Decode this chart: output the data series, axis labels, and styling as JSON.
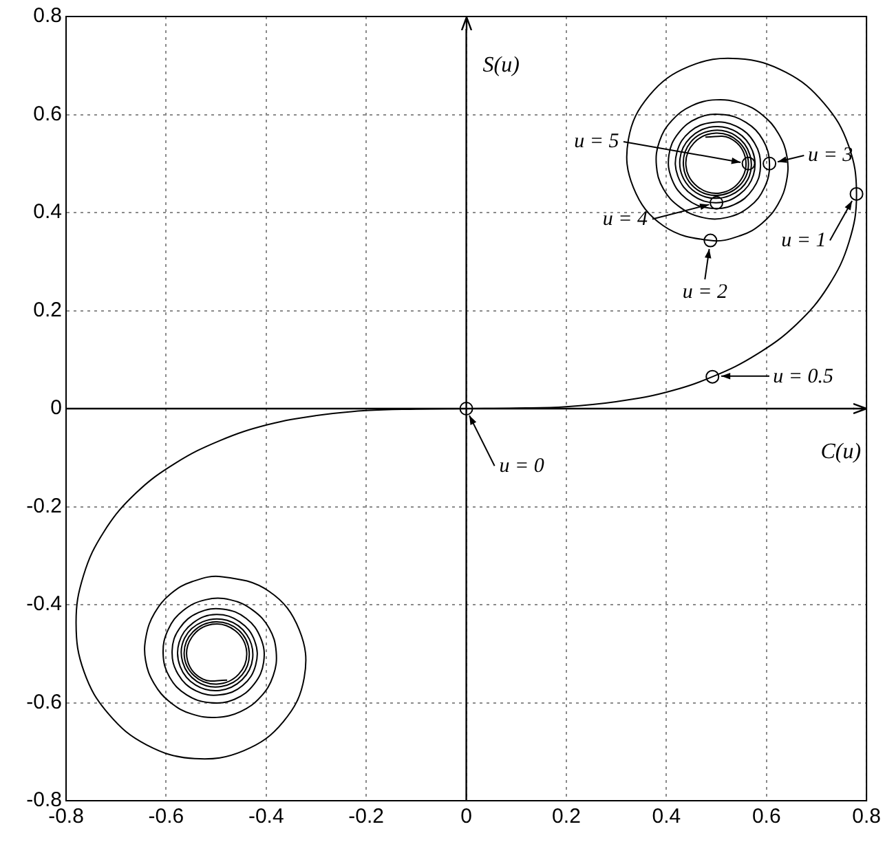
{
  "chart_data": {
    "type": "line",
    "xlabel": "C(u)",
    "ylabel": "S(u)",
    "xlim": [
      -0.8,
      0.8
    ],
    "ylim": [
      -0.8,
      0.8
    ],
    "xticks": [
      -0.8,
      -0.6,
      -0.4,
      -0.2,
      0,
      0.2,
      0.4,
      0.6,
      0.8
    ],
    "yticks": [
      -0.8,
      -0.6,
      -0.4,
      -0.2,
      0,
      0.2,
      0.4,
      0.6,
      0.8
    ],
    "grid": true,
    "legend": false,
    "series": [
      {
        "type": "line",
        "color": "#000000",
        "marker": "none",
        "x": [
          0,
          0.1,
          0.2,
          0.299,
          0.398,
          0.492,
          0.581,
          0.66,
          0.723,
          0.765,
          0.78,
          0.764,
          0.715,
          0.639,
          0.543,
          0.445,
          0.366,
          0.324,
          0.334,
          0.394,
          0.488,
          0.548,
          0.591,
          0.623,
          0.64,
          0.641,
          0.624,
          0.592,
          0.549,
          0.499,
          0.451,
          0.411,
          0.386,
          0.38,
          0.394,
          0.427,
          0.472,
          0.521,
          0.566,
          0.596,
          0.606,
          0.593,
          0.559,
          0.512,
          0.463,
          0.424,
          0.405,
          0.411,
          0.44,
          0.486,
          0.535,
          0.573,
          0.588,
          0.576,
          0.54,
          0.492,
          0.447,
          0.421,
          0.423,
          0.453,
          0.5,
          0.546,
          0.574,
          0.572,
          0.541,
          0.493,
          0.448,
          0.427,
          0.439,
          0.478,
          0.527,
          0.563,
          0.567,
          0.538,
          0.49,
          0.448,
          0.434,
          0.455,
          0.501,
          0.546,
          0.564,
          0.544,
          0.499,
          0.455,
          0.439,
          0.462,
          0.508,
          0.549,
          0.557,
          0.526,
          0.478
        ],
        "values": [
          0,
          0.001,
          0.004,
          0.014,
          0.033,
          0.065,
          0.111,
          0.172,
          0.249,
          0.34,
          0.438,
          0.537,
          0.623,
          0.686,
          0.714,
          0.698,
          0.639,
          0.549,
          0.451,
          0.373,
          0.343,
          0.353,
          0.378,
          0.417,
          0.464,
          0.514,
          0.561,
          0.599,
          0.623,
          0.63,
          0.618,
          0.588,
          0.545,
          0.496,
          0.448,
          0.411,
          0.39,
          0.39,
          0.412,
          0.451,
          0.5,
          0.548,
          0.584,
          0.6,
          0.593,
          0.562,
          0.517,
          0.468,
          0.428,
          0.409,
          0.416,
          0.448,
          0.494,
          0.542,
          0.576,
          0.584,
          0.565,
          0.523,
          0.474,
          0.435,
          0.42,
          0.437,
          0.477,
          0.526,
          0.564,
          0.575,
          0.553,
          0.509,
          0.461,
          0.432,
          0.435,
          0.468,
          0.517,
          0.557,
          0.567,
          0.543,
          0.496,
          0.452,
          0.435,
          0.455,
          0.5,
          0.545,
          0.562,
          0.542,
          0.496,
          0.453,
          0.44,
          0.467,
          0.515,
          0.552,
          0.554
        ]
      },
      {
        "type": "line",
        "color": "#000000",
        "marker": "none",
        "x": [
          0,
          -0.1,
          -0.2,
          -0.299,
          -0.398,
          -0.492,
          -0.581,
          -0.66,
          -0.723,
          -0.765,
          -0.78,
          -0.764,
          -0.715,
          -0.639,
          -0.543,
          -0.445,
          -0.366,
          -0.324,
          -0.334,
          -0.394,
          -0.488,
          -0.548,
          -0.591,
          -0.623,
          -0.64,
          -0.641,
          -0.624,
          -0.592,
          -0.549,
          -0.499,
          -0.451,
          -0.411,
          -0.386,
          -0.38,
          -0.394,
          -0.427,
          -0.472,
          -0.521,
          -0.566,
          -0.596,
          -0.606,
          -0.593,
          -0.559,
          -0.512,
          -0.463,
          -0.424,
          -0.405,
          -0.411,
          -0.44,
          -0.486,
          -0.535,
          -0.573,
          -0.588,
          -0.576,
          -0.54,
          -0.492,
          -0.447,
          -0.421,
          -0.423,
          -0.453,
          -0.5,
          -0.546,
          -0.574,
          -0.572,
          -0.541,
          -0.493,
          -0.448,
          -0.427,
          -0.439,
          -0.478,
          -0.527,
          -0.563,
          -0.567,
          -0.538,
          -0.49,
          -0.448,
          -0.434,
          -0.455,
          -0.501,
          -0.546,
          -0.564,
          -0.544,
          -0.499,
          -0.455,
          -0.439,
          -0.462,
          -0.508,
          -0.549,
          -0.557,
          -0.526,
          -0.478
        ],
        "values": [
          0,
          -0.001,
          -0.004,
          -0.014,
          -0.033,
          -0.065,
          -0.111,
          -0.172,
          -0.249,
          -0.34,
          -0.438,
          -0.537,
          -0.623,
          -0.686,
          -0.714,
          -0.698,
          -0.639,
          -0.549,
          -0.451,
          -0.373,
          -0.343,
          -0.353,
          -0.378,
          -0.417,
          -0.464,
          -0.514,
          -0.561,
          -0.599,
          -0.623,
          -0.63,
          -0.618,
          -0.588,
          -0.545,
          -0.496,
          -0.448,
          -0.411,
          -0.39,
          -0.39,
          -0.412,
          -0.451,
          -0.5,
          -0.548,
          -0.584,
          -0.6,
          -0.593,
          -0.562,
          -0.517,
          -0.468,
          -0.428,
          -0.409,
          -0.416,
          -0.448,
          -0.494,
          -0.542,
          -0.576,
          -0.584,
          -0.565,
          -0.523,
          -0.474,
          -0.435,
          -0.42,
          -0.437,
          -0.477,
          -0.526,
          -0.564,
          -0.575,
          -0.553,
          -0.509,
          -0.461,
          -0.432,
          -0.435,
          -0.468,
          -0.517,
          -0.557,
          -0.567,
          -0.543,
          -0.496,
          -0.452,
          -0.435,
          -0.455,
          -0.5,
          -0.545,
          -0.562,
          -0.542,
          -0.496,
          -0.453,
          -0.44,
          -0.467,
          -0.515,
          -0.552,
          -0.554
        ]
      },
      {
        "type": "scatter",
        "color": "#000000",
        "marker": "circle",
        "x": [
          0,
          0.492,
          0.78,
          0.488,
          0.606,
          0.5,
          0.564
        ],
        "values": [
          0,
          0.065,
          0.438,
          0.343,
          0.5,
          0.42,
          0.5
        ]
      }
    ],
    "annotations": [
      {
        "text": "u = 0",
        "x": 0,
        "y": 0
      },
      {
        "text": "u = 0.5",
        "x": 0.492,
        "y": 0.065
      },
      {
        "text": "u = 1",
        "x": 0.78,
        "y": 0.438
      },
      {
        "text": "u = 2",
        "x": 0.488,
        "y": 0.343
      },
      {
        "text": "u = 3",
        "x": 0.606,
        "y": 0.5
      },
      {
        "text": "u = 4",
        "x": 0.5,
        "y": 0.42
      },
      {
        "text": "u = 5",
        "x": 0.564,
        "y": 0.5
      }
    ]
  }
}
